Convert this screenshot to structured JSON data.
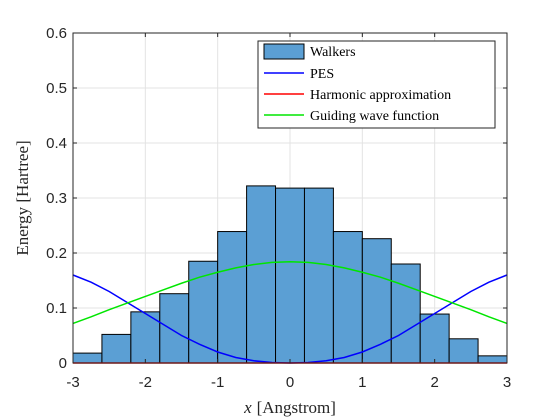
{
  "chart_data": {
    "type": "bar",
    "xlabel": "x [Angstrom]",
    "xlabel_italic_part": "x",
    "xlabel_rest": "[Angstrom]",
    "ylabel": "Energy [Hartree]",
    "xlim": [
      -3,
      3
    ],
    "ylim": [
      0,
      0.6
    ],
    "xticks": [
      "-3",
      "-2",
      "-1",
      "0",
      "1",
      "2",
      "3"
    ],
    "xtick_values": [
      -3,
      -2,
      -1,
      0,
      1,
      2,
      3
    ],
    "yticks": [
      "0",
      "0.1",
      "0.2",
      "0.3",
      "0.4",
      "0.5",
      "0.6"
    ],
    "ytick_values": [
      0,
      0.1,
      0.2,
      0.3,
      0.4,
      0.5,
      0.6
    ],
    "grid": true,
    "legend_position": "top-right",
    "histogram": {
      "name": "Walkers",
      "color": "#5b9fd4",
      "edges": [
        -3,
        -2.6,
        -2.2,
        -1.8,
        -1.4,
        -1.0,
        -0.6,
        -0.2,
        0.2,
        0.6,
        1.0,
        1.4,
        1.8,
        2.2,
        2.6,
        3.0
      ],
      "values": [
        0.018,
        0.052,
        0.093,
        0.126,
        0.185,
        0.239,
        0.322,
        0.318,
        0.318,
        0.239,
        0.226,
        0.18,
        0.089,
        0.044,
        0.013
      ]
    },
    "series": [
      {
        "name": "PES",
        "color": "#0000ff",
        "x": [
          -3,
          -2.75,
          -2.5,
          -2.25,
          -2,
          -1.75,
          -1.5,
          -1.25,
          -1,
          -0.75,
          -0.5,
          -0.25,
          0,
          0.25,
          0.5,
          0.75,
          1,
          1.25,
          1.5,
          1.75,
          2,
          2.25,
          2.5,
          2.75,
          3
        ],
        "y": [
          0.16,
          0.147,
          0.13,
          0.11,
          0.09,
          0.07,
          0.05,
          0.034,
          0.02,
          0.01,
          0.004,
          0.001,
          0.0,
          0.001,
          0.004,
          0.01,
          0.02,
          0.034,
          0.05,
          0.07,
          0.09,
          0.11,
          0.13,
          0.147,
          0.16
        ]
      },
      {
        "name": "Harmonic approximation",
        "color": "#ff0000",
        "x": [
          -3,
          3
        ],
        "y": [
          0.0,
          0.0
        ]
      },
      {
        "name": "Guiding wave function",
        "color": "#00e600",
        "x": [
          -3,
          -2.75,
          -2.5,
          -2.25,
          -2,
          -1.75,
          -1.5,
          -1.25,
          -1,
          -0.75,
          -0.5,
          -0.25,
          0,
          0.25,
          0.5,
          0.75,
          1,
          1.25,
          1.5,
          1.75,
          2,
          2.25,
          2.5,
          2.75,
          3
        ],
        "y": [
          0.072,
          0.084,
          0.097,
          0.109,
          0.121,
          0.133,
          0.145,
          0.156,
          0.165,
          0.173,
          0.179,
          0.183,
          0.184,
          0.183,
          0.179,
          0.173,
          0.165,
          0.156,
          0.145,
          0.133,
          0.121,
          0.109,
          0.097,
          0.084,
          0.072
        ]
      }
    ]
  }
}
